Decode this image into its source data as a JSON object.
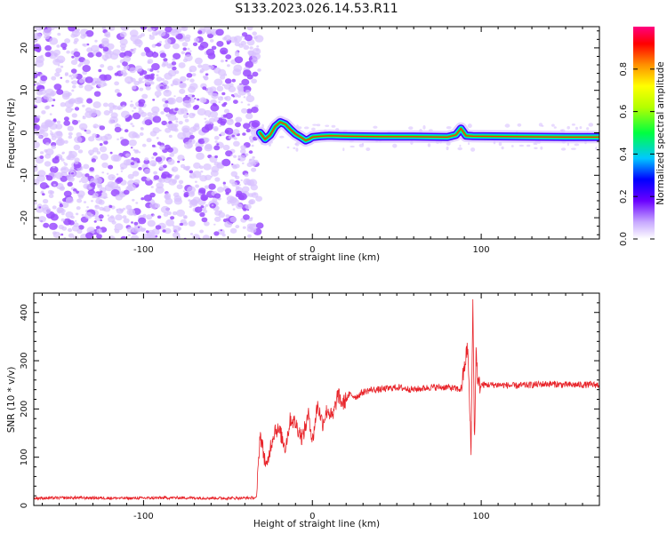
{
  "title": "S133.2023.026.14.53.R11",
  "colors": {
    "snr_line": "#e8242a",
    "speckle": "#9b4dff",
    "speckle_light": "#d9c2ff",
    "background": "#ffffff",
    "axis": "#000000"
  },
  "chart_data": [
    {
      "type": "heatmap",
      "name": "spectrogram",
      "xlabel": "Height of straight line (km)",
      "ylabel": "Frequency (Hz)",
      "xlim": [
        -165,
        170
      ],
      "ylim": [
        -25,
        25
      ],
      "x_ticks": [
        -100,
        0,
        100
      ],
      "x_tick_labels": [
        "-100",
        "0",
        "100"
      ],
      "y_ticks": [
        -20,
        -10,
        0,
        10,
        20
      ],
      "y_tick_labels": [
        "-20",
        "-10",
        "0",
        "10",
        "20"
      ],
      "noise_region": {
        "x_range": [
          -165,
          -31
        ],
        "description": "random speckle"
      },
      "signal_trace": {
        "x": [
          -31,
          -28,
          -25,
          -22,
          -19,
          -16,
          -13,
          -10,
          -7,
          -4,
          -2,
          0,
          5,
          10,
          20,
          40,
          60,
          80,
          85,
          88,
          91,
          95,
          120,
          150,
          170
        ],
        "freq": [
          0.0,
          -1.5,
          -0.5,
          1.5,
          2.5,
          2.0,
          0.8,
          -0.3,
          -1.0,
          -1.8,
          -1.5,
          -1.0,
          -0.8,
          -0.7,
          -0.8,
          -0.9,
          -0.9,
          -1.0,
          -0.5,
          1.0,
          -0.7,
          -0.8,
          -0.9,
          -1.0,
          -1.0
        ]
      },
      "colorbar": {
        "label": "Normalized spectral amplitude",
        "range": [
          0.0,
          1.0
        ],
        "ticks": [
          0.0,
          0.2,
          0.4,
          0.6,
          0.8
        ],
        "tick_labels": [
          "0.0",
          "0.2",
          "0.4",
          "0.6",
          "0.8"
        ]
      }
    },
    {
      "type": "line",
      "name": "snr",
      "xlabel": "Height of straight line (km)",
      "ylabel": "SNR (10 * v/v)",
      "xlim": [
        -165,
        170
      ],
      "ylim": [
        0,
        440
      ],
      "x_ticks": [
        -100,
        0,
        100
      ],
      "x_tick_labels": [
        "-100",
        "0",
        "100"
      ],
      "y_ticks": [
        0,
        100,
        200,
        300,
        400
      ],
      "y_tick_labels": [
        "0",
        "100",
        "200",
        "300",
        "400"
      ],
      "series": [
        {
          "x": [
            -165,
            -140,
            -110,
            -80,
            -50,
            -33,
            -31,
            -29,
            -27,
            -25,
            -22,
            -19,
            -16,
            -13,
            -10,
            -6,
            -2,
            0,
            3,
            6,
            9,
            12,
            15,
            18,
            22,
            26,
            30,
            35,
            40,
            50,
            60,
            70,
            80,
            88,
            92,
            94,
            95,
            96,
            97,
            98,
            100,
            110,
            120,
            130,
            140,
            150,
            160,
            170
          ],
          "values": [
            15,
            16,
            15,
            16,
            15,
            16,
            150,
            110,
            75,
            120,
            160,
            150,
            120,
            180,
            170,
            140,
            190,
            130,
            210,
            170,
            200,
            180,
            230,
            210,
            230,
            225,
            235,
            240,
            240,
            245,
            240,
            245,
            245,
            240,
            330,
            110,
            430,
            130,
            330,
            250,
            250,
            250,
            248,
            250,
            252,
            250,
            250,
            250
          ]
        }
      ]
    }
  ]
}
